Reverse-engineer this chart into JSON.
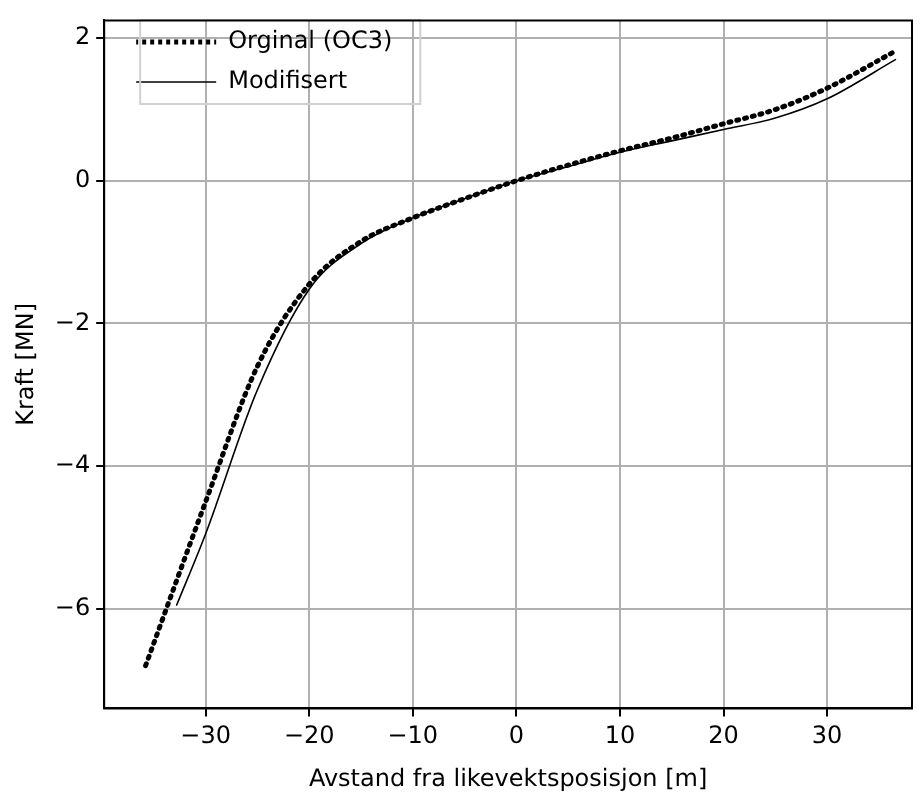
{
  "chart_data": {
    "type": "line",
    "xlabel": "Avstand fra likevektsposisjon [m]",
    "ylabel": "Kraft [MN]",
    "xlim": [
      -39.8,
      38.2
    ],
    "xticks": [
      -30,
      -20,
      -10,
      0,
      10,
      20,
      30
    ],
    "ylim": [
      -7.4,
      2.25
    ],
    "yticks": [
      -6,
      -4,
      -2,
      0,
      2
    ],
    "grid": true,
    "legend": "top left",
    "marker": "none",
    "series": [
      {
        "name": "Orginal (OC3)",
        "color": "#000000",
        "line_style": "dotted",
        "x": [
          -35.8,
          -30,
          -25,
          -20,
          -15,
          -10,
          -5,
          0,
          5,
          10,
          15,
          20,
          25,
          30,
          36.6
        ],
        "values": [
          -6.8,
          -4.5,
          -2.6,
          -1.45,
          -0.85,
          -0.52,
          -0.25,
          0,
          0.22,
          0.42,
          0.6,
          0.8,
          1.0,
          1.3,
          1.82
        ]
      },
      {
        "name": "Modifisert",
        "color": "#000000",
        "line_style": "solid",
        "x": [
          -32.8,
          -30,
          -25,
          -20,
          -15,
          -10,
          -5,
          0,
          5,
          10,
          15,
          20,
          25,
          30,
          36.6
        ],
        "values": [
          -5.95,
          -4.95,
          -2.93,
          -1.52,
          -0.88,
          -0.52,
          -0.25,
          0,
          0.2,
          0.4,
          0.56,
          0.72,
          0.88,
          1.15,
          1.7
        ]
      }
    ]
  }
}
